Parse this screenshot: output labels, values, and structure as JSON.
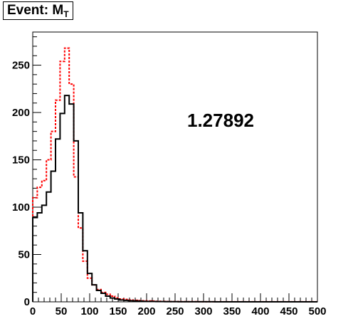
{
  "title": {
    "main": "Event: M",
    "sub": "T"
  },
  "chart_data": {
    "type": "step-histogram",
    "title": "Event: M_T",
    "xlabel": "",
    "ylabel": "",
    "xlim": [
      0,
      500
    ],
    "ylim": [
      0,
      285
    ],
    "x_ticks": [
      0,
      50,
      100,
      150,
      200,
      250,
      300,
      350,
      400,
      450,
      500
    ],
    "y_ticks": [
      0,
      50,
      100,
      150,
      200,
      250
    ],
    "bin_edges": [
      0,
      8,
      16,
      24,
      32,
      40,
      48,
      56,
      64,
      72,
      80,
      88,
      96,
      104,
      112,
      120,
      128,
      136,
      144,
      152,
      160,
      168,
      176,
      184,
      192,
      200,
      208,
      216,
      224,
      232,
      240,
      248,
      256,
      264,
      272,
      280,
      288,
      296,
      304,
      312,
      320,
      328,
      336,
      344,
      352,
      360,
      368,
      376,
      384,
      392,
      400,
      408,
      416,
      424,
      432,
      440,
      448,
      456,
      464,
      472,
      480,
      488,
      496,
      500
    ],
    "series": [
      {
        "color": "#000000",
        "style": "solid",
        "values": [
          89,
          94,
          102,
          116,
          138,
          172,
          199,
          218,
          209,
          170,
          94,
          54,
          30,
          18,
          12,
          9,
          6,
          4,
          3,
          2,
          1.6,
          1.2,
          1.0,
          0.8,
          0.6,
          0.5,
          0.4,
          0.3,
          0.3,
          0.2,
          0.2,
          0.2,
          0.1,
          0.1,
          0.1,
          0.1,
          0.1,
          0.1,
          0.1,
          0.1,
          0,
          0,
          0,
          0,
          0,
          0,
          0,
          0,
          0,
          0,
          0,
          0,
          0,
          0,
          0,
          0,
          0,
          0,
          0,
          0,
          0,
          0,
          0
        ]
      },
      {
        "color": "#ff0000",
        "style": "dashed",
        "values": [
          110,
          121,
          128,
          150,
          180,
          213,
          254,
          268,
          230,
          132,
          78,
          43,
          25,
          18,
          13,
          10,
          8,
          6,
          4,
          3,
          2.5,
          2,
          1.6,
          1.3,
          1.1,
          0.9,
          0.8,
          0.6,
          0.5,
          0.4,
          0.3,
          0.3,
          0.2,
          0.2,
          0.2,
          0.2,
          0.1,
          0.1,
          0.1,
          0.1,
          0.1,
          0.1,
          0.1,
          0.1,
          0.1,
          0.1,
          0.1,
          0.1,
          0.1,
          0.1,
          0.1,
          0.1,
          0.1,
          0.1,
          0.1,
          0.1,
          0.1,
          0.1,
          0.1,
          0.1,
          0.1,
          0.1,
          0.1
        ]
      }
    ],
    "annotations": [
      {
        "text": "1.27892",
        "x": 330,
        "y": 185
      }
    ],
    "grid": false,
    "legend": "none"
  }
}
